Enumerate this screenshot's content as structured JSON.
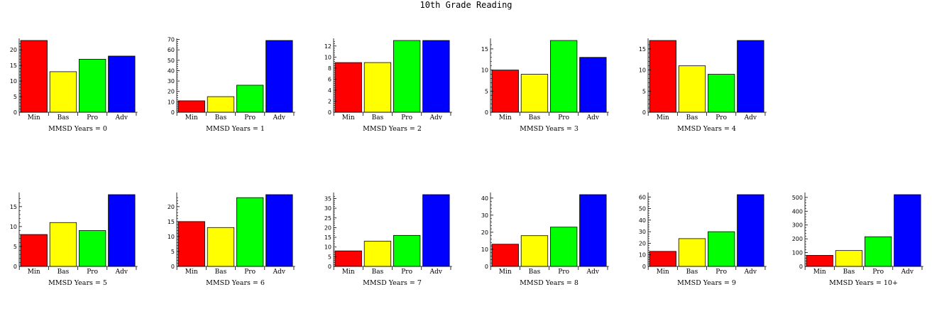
{
  "page_title": "10th Grade Reading",
  "chart_data": [
    {
      "type": "bar",
      "xlabel": "MMSD Years = 0",
      "categories": [
        "Min",
        "Bas",
        "Pro",
        "Adv"
      ],
      "values": [
        23,
        13,
        17,
        18
      ],
      "ylim": [
        0,
        23
      ],
      "yticks": [
        0,
        5,
        10,
        15,
        20
      ],
      "colors": [
        "#ff0000",
        "#ffff00",
        "#00ff00",
        "#0000ff"
      ]
    },
    {
      "type": "bar",
      "xlabel": "MMSD Years = 1",
      "categories": [
        "Min",
        "Bas",
        "Pro",
        "Adv"
      ],
      "values": [
        11,
        15,
        26,
        69
      ],
      "ylim": [
        0,
        69
      ],
      "yticks": [
        0,
        10,
        20,
        30,
        40,
        50,
        60,
        70
      ],
      "colors": [
        "#ff0000",
        "#ffff00",
        "#00ff00",
        "#0000ff"
      ]
    },
    {
      "type": "bar",
      "xlabel": "MMSD Years = 2",
      "categories": [
        "Min",
        "Bas",
        "Pro",
        "Adv"
      ],
      "values": [
        9,
        9,
        13,
        13
      ],
      "ylim": [
        0,
        13
      ],
      "yticks": [
        0,
        2,
        4,
        6,
        8,
        10,
        12
      ],
      "colors": [
        "#ff0000",
        "#ffff00",
        "#00ff00",
        "#0000ff"
      ]
    },
    {
      "type": "bar",
      "xlabel": "MMSD Years = 3",
      "categories": [
        "Min",
        "Bas",
        "Pro",
        "Adv"
      ],
      "values": [
        10,
        9,
        17,
        13
      ],
      "ylim": [
        0,
        17
      ],
      "yticks": [
        0,
        5,
        10,
        15
      ],
      "colors": [
        "#ff0000",
        "#ffff00",
        "#00ff00",
        "#0000ff"
      ]
    },
    {
      "type": "bar",
      "xlabel": "MMSD Years = 4",
      "categories": [
        "Min",
        "Bas",
        "Pro",
        "Adv"
      ],
      "values": [
        17,
        11,
        9,
        17
      ],
      "ylim": [
        0,
        17
      ],
      "yticks": [
        0,
        5,
        10,
        15
      ],
      "colors": [
        "#ff0000",
        "#ffff00",
        "#00ff00",
        "#0000ff"
      ]
    },
    {
      "type": "bar",
      "xlabel": "MMSD Years = 5",
      "categories": [
        "Min",
        "Bas",
        "Pro",
        "Adv"
      ],
      "values": [
        8,
        11,
        9,
        18
      ],
      "ylim": [
        0,
        18
      ],
      "yticks": [
        0,
        5,
        10,
        15
      ],
      "colors": [
        "#ff0000",
        "#ffff00",
        "#00ff00",
        "#0000ff"
      ]
    },
    {
      "type": "bar",
      "xlabel": "MMSD Years = 6",
      "categories": [
        "Min",
        "Bas",
        "Pro",
        "Adv"
      ],
      "values": [
        15,
        13,
        23,
        24
      ],
      "ylim": [
        0,
        24
      ],
      "yticks": [
        0,
        5,
        10,
        15,
        20
      ],
      "colors": [
        "#ff0000",
        "#ffff00",
        "#00ff00",
        "#0000ff"
      ]
    },
    {
      "type": "bar",
      "xlabel": "MMSD Years = 7",
      "categories": [
        "Min",
        "Bas",
        "Pro",
        "Adv"
      ],
      "values": [
        8,
        13,
        16,
        37
      ],
      "ylim": [
        0,
        37
      ],
      "yticks": [
        0,
        5,
        10,
        15,
        20,
        25,
        30,
        35
      ],
      "colors": [
        "#ff0000",
        "#ffff00",
        "#00ff00",
        "#0000ff"
      ]
    },
    {
      "type": "bar",
      "xlabel": "MMSD Years = 8",
      "categories": [
        "Min",
        "Bas",
        "Pro",
        "Adv"
      ],
      "values": [
        13,
        18,
        23,
        42
      ],
      "ylim": [
        0,
        42
      ],
      "yticks": [
        0,
        10,
        20,
        30,
        40
      ],
      "colors": [
        "#ff0000",
        "#ffff00",
        "#00ff00",
        "#0000ff"
      ]
    },
    {
      "type": "bar",
      "xlabel": "MMSD Years = 9",
      "categories": [
        "Min",
        "Bas",
        "Pro",
        "Adv"
      ],
      "values": [
        13,
        24,
        30,
        62
      ],
      "ylim": [
        0,
        62
      ],
      "yticks": [
        0,
        10,
        20,
        30,
        40,
        50,
        60
      ],
      "colors": [
        "#ff0000",
        "#ffff00",
        "#00ff00",
        "#0000ff"
      ]
    },
    {
      "type": "bar",
      "xlabel": "MMSD Years = 10+",
      "categories": [
        "Min",
        "Bas",
        "Pro",
        "Adv"
      ],
      "values": [
        80,
        115,
        215,
        520
      ],
      "ylim": [
        0,
        520
      ],
      "yticks": [
        0,
        100,
        200,
        300,
        400,
        500
      ],
      "colors": [
        "#ff0000",
        "#ffff00",
        "#00ff00",
        "#0000ff"
      ]
    }
  ]
}
